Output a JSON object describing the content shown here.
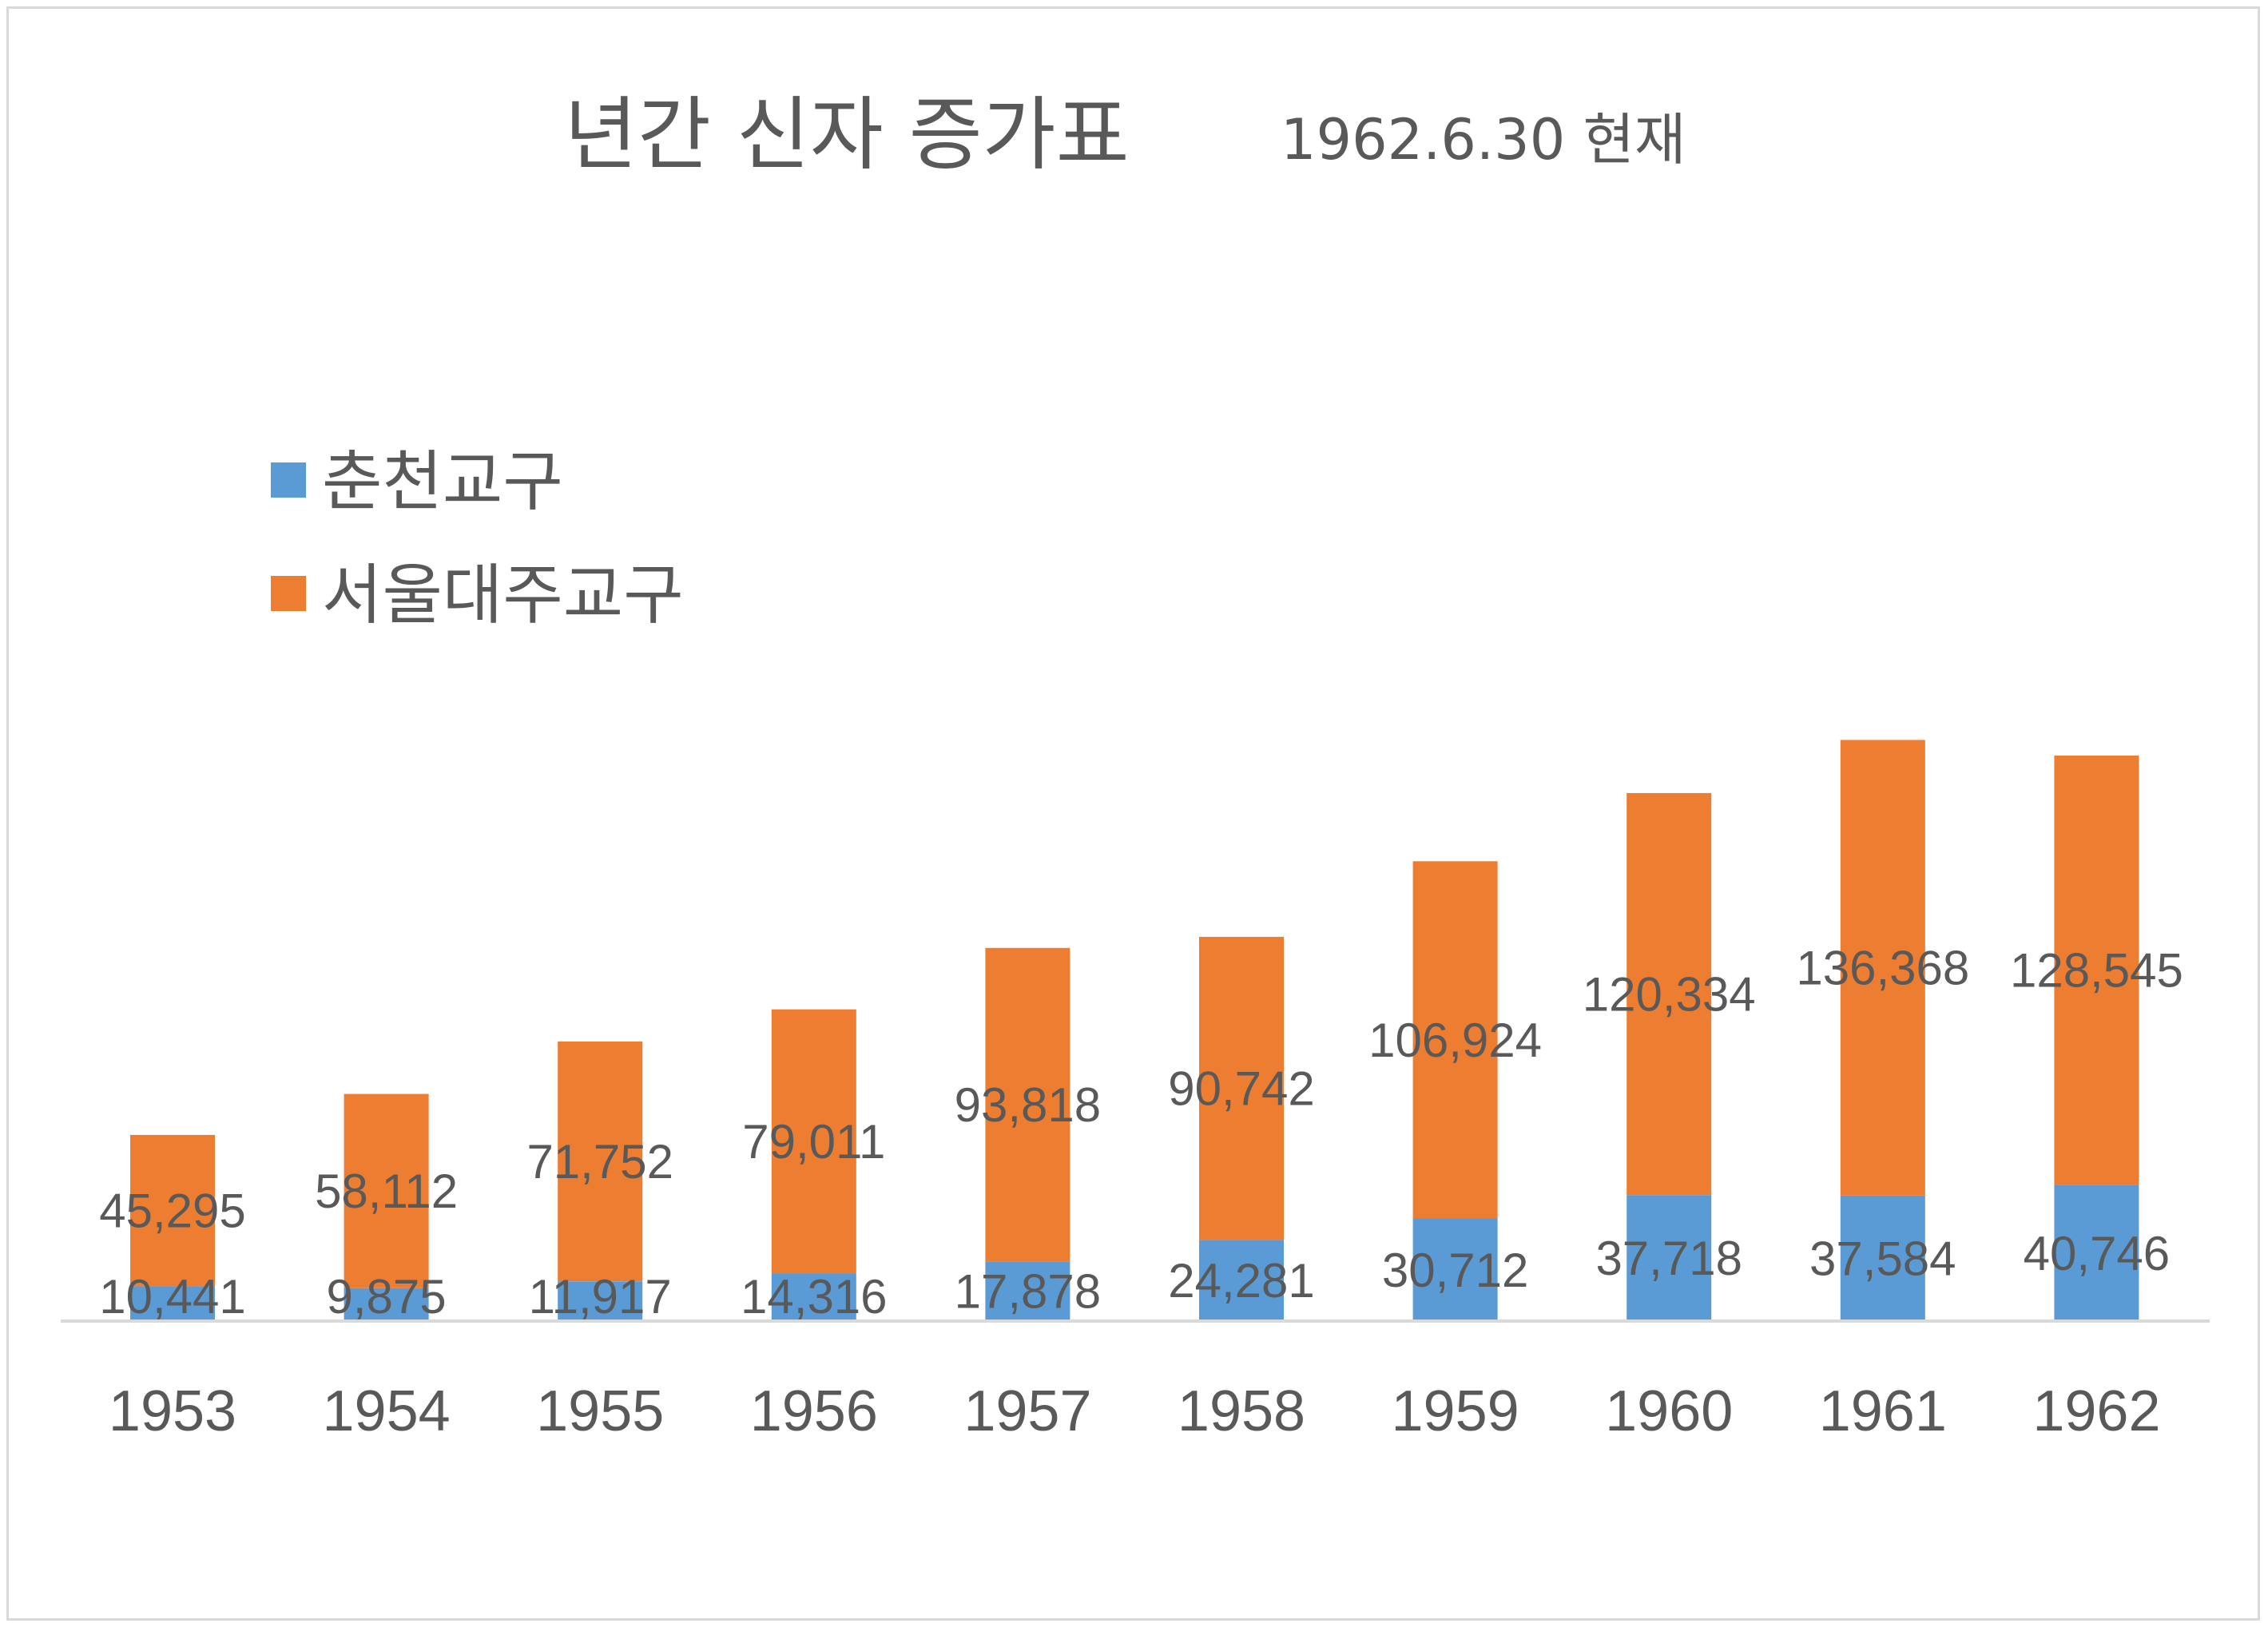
{
  "chart_data": {
    "type": "bar",
    "stacked": true,
    "title": "년간 신자 증가표",
    "subtitle": "1962.6.30 현재",
    "xlabel": "",
    "ylabel": "",
    "categories": [
      "1953",
      "1954",
      "1955",
      "1956",
      "1957",
      "1958",
      "1959",
      "1960",
      "1961",
      "1962"
    ],
    "series": [
      {
        "name": "춘천교구",
        "color": "#5b9bd5",
        "values": [
          10441,
          9875,
          11917,
          14316,
          17878,
          24281,
          30712,
          37718,
          37584,
          40746
        ],
        "labels": [
          "10,441",
          "9,875",
          "11,917",
          "14,316",
          "17,878",
          "24,281",
          "30,712",
          "37,718",
          "37,584",
          "40,746"
        ]
      },
      {
        "name": "서울대주교구",
        "color": "#ed7d31",
        "values": [
          45295,
          58112,
          71752,
          79011,
          93818,
          90742,
          106924,
          120334,
          136368,
          128545
        ],
        "labels": [
          "45,295",
          "58,112",
          "71,752",
          "79,011",
          "93,818",
          "90,742",
          "106,924",
          "120,334",
          "136,368",
          "128,545"
        ]
      }
    ],
    "ylim": [
      0,
      180000
    ],
    "grid": false,
    "legend": "top-left",
    "axis_color": "#d9d9d9",
    "text_color": "#595959"
  }
}
